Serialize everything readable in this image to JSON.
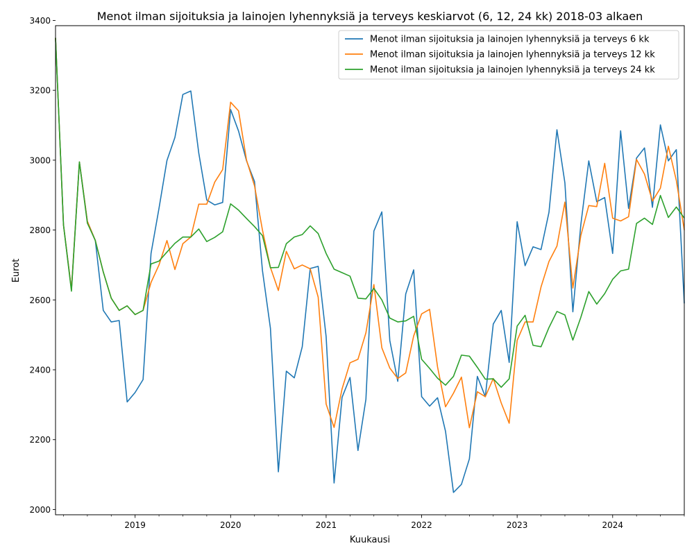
{
  "chart_data": {
    "type": "line",
    "title": "Menot ilman sijoituksia ja lainojen lyhennyksiä ja terveys keskiarvot (6, 12, 24 kk) 2018-03 alkaen",
    "xlabel": "Kuukausi",
    "ylabel": "Eurot",
    "x_start": "2018-03",
    "x_end": "2024-10",
    "ylim": [
      1985,
      3385
    ],
    "yticks": [
      2000,
      2200,
      2400,
      2600,
      2800,
      3000,
      3200,
      3400
    ],
    "xticks": [
      {
        "label": "2019",
        "date": "2019-01"
      },
      {
        "label": "2020",
        "date": "2020-01"
      },
      {
        "label": "2021",
        "date": "2021-01"
      },
      {
        "label": "2022",
        "date": "2022-01"
      },
      {
        "label": "2023",
        "date": "2023-01"
      },
      {
        "label": "2024",
        "date": "2024-01"
      }
    ],
    "grid": false,
    "legend_position": "top-right",
    "series": [
      {
        "name": "Menot ilman sijoituksia ja lainojen lyhennyksiä ja terveys 6 kk",
        "color": "#1f77b4",
        "values": [
          3350,
          2815,
          2630,
          2995,
          2825,
          2770,
          2570,
          2537,
          2541,
          2308,
          2335,
          2372,
          2733,
          2862,
          2999,
          3065,
          3188,
          3198,
          3020,
          2886,
          2872,
          2879,
          3145,
          3083,
          2998,
          2939,
          2684,
          2519,
          2108,
          2396,
          2377,
          2466,
          2690,
          2696,
          2495,
          2076,
          2321,
          2378,
          2169,
          2316,
          2797,
          2852,
          2484,
          2367,
          2617,
          2686,
          2323,
          2296,
          2320,
          2224,
          2049,
          2072,
          2145,
          2381,
          2323,
          2531,
          2570,
          2421,
          2824,
          2698,
          2752,
          2744,
          2851,
          3087,
          2935,
          2566,
          2815,
          2998,
          2881,
          2893,
          2733,
          3084,
          2862,
          3006,
          3035,
          2865,
          3101,
          2998,
          3030,
          2590
        ]
      },
      {
        "name": "Menot ilman sijoituksia ja lainojen lyhennyksiä ja terveys 12 kk",
        "color": "#ff7f0e",
        "values": [
          3350,
          2815,
          2630,
          2995,
          2825,
          2770,
          2680,
          2605,
          2570,
          2583,
          2558,
          2570,
          2650,
          2700,
          2770,
          2687,
          2761,
          2780,
          2874,
          2874,
          2937,
          2973,
          3166,
          3141,
          3000,
          2927,
          2800,
          2693,
          2627,
          2739,
          2689,
          2700,
          2689,
          2608,
          2302,
          2235,
          2345,
          2420,
          2430,
          2506,
          2644,
          2463,
          2405,
          2375,
          2391,
          2497,
          2560,
          2573,
          2408,
          2294,
          2333,
          2379,
          2234,
          2337,
          2323,
          2375,
          2305,
          2247,
          2484,
          2537,
          2537,
          2637,
          2710,
          2754,
          2880,
          2634,
          2784,
          2870,
          2867,
          2991,
          2834,
          2826,
          2838,
          3002,
          2960,
          2883,
          2920,
          3040,
          2942,
          2800
        ]
      },
      {
        "name": "Menot ilman sijoituksia ja lainojen lyhennyksiä ja terveys 24 kk",
        "color": "#2ca02c",
        "values": [
          3350,
          2815,
          2625,
          2995,
          2820,
          2770,
          2680,
          2605,
          2570,
          2583,
          2558,
          2570,
          2703,
          2711,
          2737,
          2762,
          2780,
          2780,
          2803,
          2767,
          2779,
          2795,
          2875,
          2857,
          2833,
          2810,
          2784,
          2692,
          2693,
          2761,
          2780,
          2787,
          2812,
          2790,
          2733,
          2688,
          2678,
          2668,
          2605,
          2603,
          2633,
          2600,
          2548,
          2537,
          2540,
          2553,
          2430,
          2404,
          2376,
          2356,
          2381,
          2442,
          2439,
          2407,
          2373,
          2374,
          2350,
          2374,
          2525,
          2556,
          2470,
          2466,
          2521,
          2567,
          2557,
          2485,
          2550,
          2624,
          2588,
          2618,
          2659,
          2683,
          2688,
          2819,
          2834,
          2816,
          2899,
          2836,
          2866,
          2834
        ]
      }
    ]
  }
}
